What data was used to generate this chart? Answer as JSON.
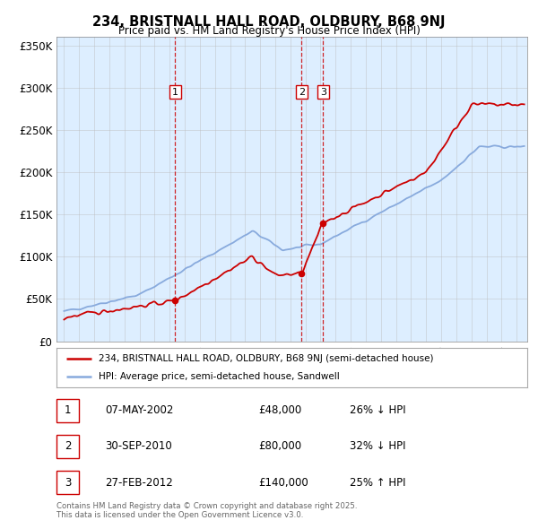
{
  "title": "234, BRISTNALL HALL ROAD, OLDBURY, B68 9NJ",
  "subtitle": "Price paid vs. HM Land Registry's House Price Index (HPI)",
  "ylim": [
    0,
    360000
  ],
  "yticks": [
    0,
    50000,
    100000,
    150000,
    200000,
    250000,
    300000,
    350000
  ],
  "ytick_labels": [
    "£0",
    "£50K",
    "£100K",
    "£150K",
    "£200K",
    "£250K",
    "£300K",
    "£350K"
  ],
  "xlim_start": 1994.5,
  "xlim_end": 2025.7,
  "red_line_color": "#cc0000",
  "blue_line_color": "#88aadd",
  "chart_bg_color": "#ddeeff",
  "transaction_line_color": "#cc0000",
  "transactions": [
    {
      "year": 2002.37,
      "price": 48000,
      "label": "1"
    },
    {
      "year": 2010.75,
      "price": 80000,
      "label": "2"
    },
    {
      "year": 2012.17,
      "price": 140000,
      "label": "3"
    }
  ],
  "marker_y": 295000,
  "legend_red_label": "234, BRISTNALL HALL ROAD, OLDBURY, B68 9NJ (semi-detached house)",
  "legend_blue_label": "HPI: Average price, semi-detached house, Sandwell",
  "table_rows": [
    [
      "1",
      "07-MAY-2002",
      "£48,000",
      "26% ↓ HPI"
    ],
    [
      "2",
      "30-SEP-2010",
      "£80,000",
      "32% ↓ HPI"
    ],
    [
      "3",
      "27-FEB-2012",
      "£140,000",
      "25% ↑ HPI"
    ]
  ],
  "footer": "Contains HM Land Registry data © Crown copyright and database right 2025.\nThis data is licensed under the Open Government Licence v3.0.",
  "background_color": "#ffffff",
  "grid_color": "#bbbbbb"
}
